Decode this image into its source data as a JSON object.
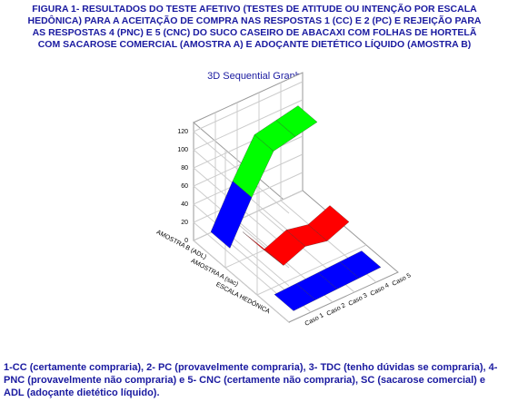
{
  "chart_data": {
    "type": "ribbon3d",
    "title": "FIGURA 1- RESULTADOS DO TESTE AFETIVO (TESTES DE ATITUDE OU INTENÇÃO POR ESCALA HEDÔNICA) PARA A ACEITAÇÃO DE COMPRA NAS RESPOSTAS 1 (CC) E 2 (PC) E REJEIÇÃO PARA AS RESPOSTAS 4 (PNC) E 5 (CNC) DO SUCO CASEIRO DE ABACAXI COM FOLHAS DE HORTELÃ COM SACAROSE COMERCIAL (AMOSTRA A) E ADOÇANTE DIETÉTICO LÍQUIDO (AMOSTRA B)",
    "subtitle": "3D Sequential Graph",
    "categories": [
      "Caso 1",
      "Caso 2",
      "Caso 3",
      "Caso 4",
      "Caso 5"
    ],
    "series": [
      {
        "name": "ESCALA HEDÔNICA",
        "color": "#0000ff",
        "values": [
          1,
          2,
          3,
          4,
          5
        ]
      },
      {
        "name": "AMOSTRA A (sac)",
        "color": "#ff0000",
        "values": [
          40,
          10,
          20,
          15,
          25
        ]
      },
      {
        "name": "AMOSTRA B (ADL)",
        "color": "#0000ff",
        "color_high": "#00ff00",
        "color_split": 60,
        "values": [
          10,
          55,
          95,
          100,
          105
        ]
      }
    ],
    "zlim": [
      0,
      130
    ],
    "zticks": [
      0,
      20,
      40,
      60,
      80,
      100,
      120
    ],
    "grid": true,
    "caption": "1-CC (certamente compraria), 2- PC (provavelmente compraria), 3- TDC (tenho dúvidas se compraria), 4- PNC (provavelmente não compraria) e 5- CNC (certamente não compraria), SC (sacarose comercial) e ADL (adoçante dietético líquido)."
  }
}
